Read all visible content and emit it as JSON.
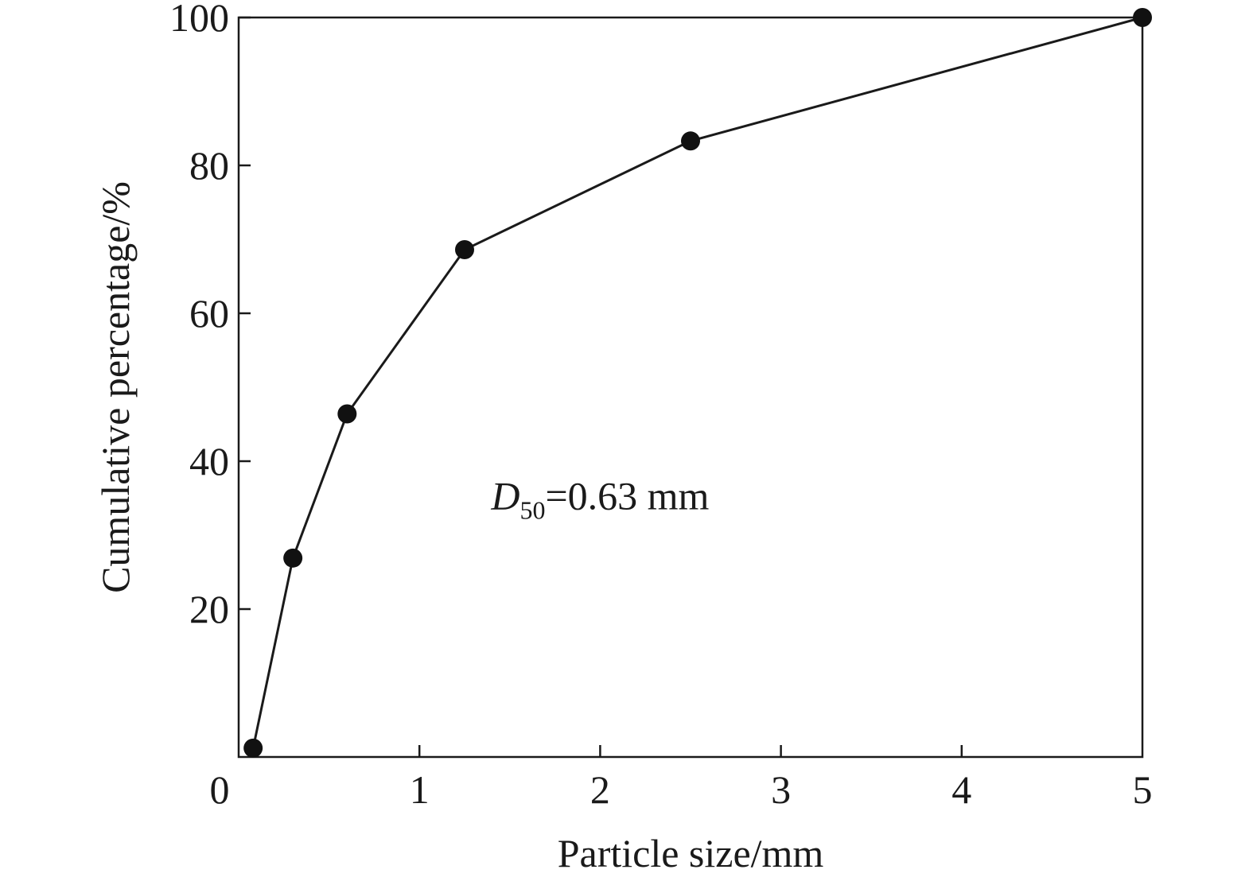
{
  "chart_data": {
    "type": "line",
    "title": "",
    "xlabel": "Particle size/mm",
    "ylabel": "Cumulative percentage/%",
    "xlim": [
      0,
      5
    ],
    "ylim": [
      0,
      100
    ],
    "x_ticks": [
      0,
      1,
      2,
      3,
      4,
      5
    ],
    "y_ticks": [
      20,
      40,
      60,
      80,
      100
    ],
    "y_origin_label": "0",
    "grid": false,
    "legend": "none",
    "series": [
      {
        "x": [
          0.08,
          0.3,
          0.6,
          1.25,
          2.5,
          5.0
        ],
        "y": [
          1.2,
          26.9,
          46.4,
          68.6,
          83.3,
          100.0
        ],
        "color": "#111111",
        "marker": "filled-circle"
      }
    ],
    "annotations": [
      {
        "italic": "D",
        "subscript": "50",
        "text": "=0.63 mm",
        "at_x": 2.0,
        "at_y": 33.5
      }
    ]
  }
}
